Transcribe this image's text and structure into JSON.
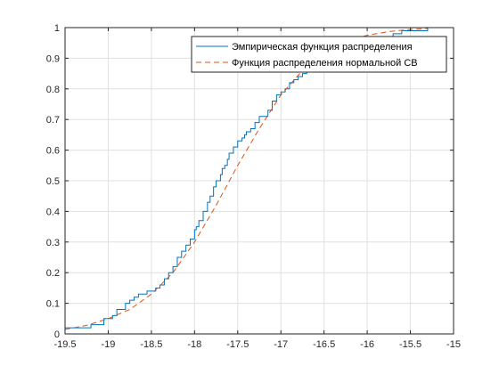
{
  "colors": {
    "empirical": "#0072BD",
    "normal": "#D95319",
    "grid": "#E0E0E0",
    "axis": "#262626"
  },
  "chart_data": {
    "type": "line",
    "xlim": [
      -19.5,
      -15
    ],
    "ylim": [
      0,
      1
    ],
    "xticks": [
      -19.5,
      -19,
      -18.5,
      -18,
      -17.5,
      -17,
      -16.5,
      -16,
      -15.5,
      -15
    ],
    "xtick_labels": [
      "-19.5",
      "-19",
      "-18.5",
      "-18",
      "-17.5",
      "-17",
      "-16.5",
      "-16",
      "-15.5",
      "-15"
    ],
    "yticks": [
      0,
      0.1,
      0.2,
      0.3,
      0.4,
      0.5,
      0.6,
      0.7,
      0.8,
      0.9,
      1
    ],
    "ytick_labels": [
      "0",
      "0.1",
      "0.2",
      "0.3",
      "0.4",
      "0.5",
      "0.6",
      "0.7",
      "0.8",
      "0.9",
      "1"
    ],
    "grid": true,
    "legend_position": "top-right",
    "series": [
      {
        "name": "Эмпирическая функция распределения",
        "style": "step",
        "color": "#0072BD",
        "x": [
          -19.5,
          -19.2,
          -19.05,
          -18.95,
          -18.9,
          -18.8,
          -18.75,
          -18.7,
          -18.65,
          -18.6,
          -18.55,
          -18.5,
          -18.45,
          -18.4,
          -18.35,
          -18.3,
          -18.25,
          -18.2,
          -18.15,
          -18.1,
          -18.05,
          -18.0,
          -17.98,
          -17.95,
          -17.9,
          -17.85,
          -17.82,
          -17.78,
          -17.75,
          -17.7,
          -17.68,
          -17.65,
          -17.62,
          -17.6,
          -17.55,
          -17.5,
          -17.45,
          -17.42,
          -17.4,
          -17.35,
          -17.3,
          -17.25,
          -17.2,
          -17.15,
          -17.1,
          -17.05,
          -17.0,
          -16.95,
          -16.9,
          -16.85,
          -16.8,
          -16.75,
          -16.7,
          -16.65,
          -16.6,
          -16.55,
          -16.5,
          -16.45,
          -16.4,
          -16.3,
          -16.2,
          -16.1,
          -16.0,
          -15.9,
          -15.8,
          -15.7,
          -15.6,
          -15.5,
          -15.3
        ],
        "y": [
          0.02,
          0.03,
          0.05,
          0.06,
          0.08,
          0.1,
          0.11,
          0.12,
          0.13,
          0.13,
          0.14,
          0.14,
          0.15,
          0.16,
          0.18,
          0.2,
          0.22,
          0.25,
          0.27,
          0.29,
          0.31,
          0.34,
          0.35,
          0.37,
          0.4,
          0.43,
          0.45,
          0.48,
          0.5,
          0.52,
          0.54,
          0.55,
          0.57,
          0.59,
          0.61,
          0.63,
          0.64,
          0.65,
          0.66,
          0.67,
          0.69,
          0.71,
          0.71,
          0.73,
          0.76,
          0.78,
          0.79,
          0.8,
          0.82,
          0.83,
          0.84,
          0.85,
          0.86,
          0.87,
          0.88,
          0.89,
          0.89,
          0.9,
          0.91,
          0.92,
          0.93,
          0.95,
          0.96,
          0.97,
          0.97,
          0.98,
          0.99,
          0.99,
          1.0
        ]
      },
      {
        "name": "Функция распределения нормальной СВ",
        "style": "dashed",
        "color": "#D95319",
        "x": [
          -19.5,
          -19.25,
          -19.0,
          -18.75,
          -18.5,
          -18.25,
          -18.0,
          -17.75,
          -17.5,
          -17.25,
          -17.0,
          -16.75,
          -16.5,
          -16.25,
          -16.0,
          -15.75,
          -15.5,
          -15.3
        ],
        "y": [
          0.015,
          0.028,
          0.05,
          0.08,
          0.13,
          0.2,
          0.3,
          0.42,
          0.55,
          0.67,
          0.78,
          0.86,
          0.92,
          0.955,
          0.975,
          0.987,
          0.994,
          0.997
        ]
      }
    ]
  }
}
